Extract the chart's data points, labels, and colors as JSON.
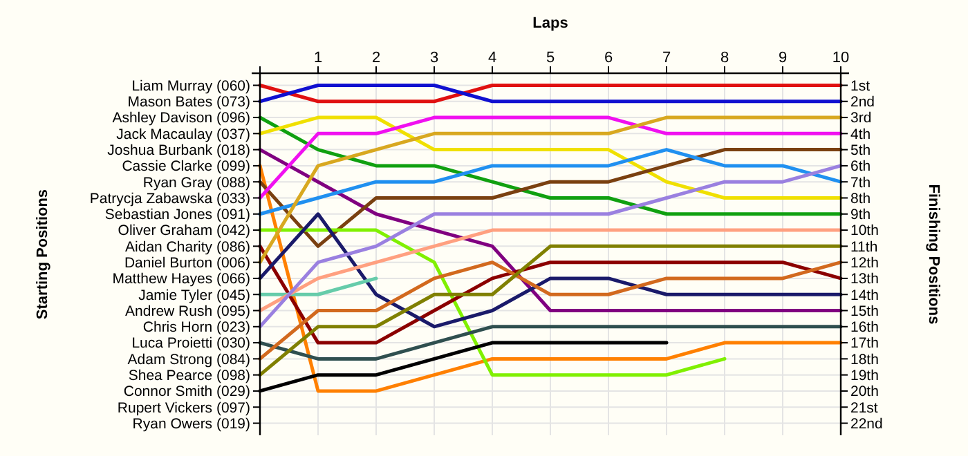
{
  "chart_data": {
    "type": "line",
    "xlabel": "Laps",
    "ylabel": "Finishing Positions",
    "x": [
      0,
      1,
      2,
      3,
      4,
      5,
      6,
      7,
      8,
      9,
      10
    ],
    "xlim": [
      0,
      10
    ],
    "xticks": [
      {
        "value": 0,
        "label": null
      },
      1,
      2,
      3,
      4,
      5,
      6,
      7,
      8,
      9,
      10
    ],
    "ylim": [
      22.75,
      0.25
    ],
    "yticks": [
      {
        "value": 1,
        "label": "1st"
      },
      {
        "value": 2,
        "label": "2nd"
      },
      {
        "value": 3,
        "label": "3rd"
      },
      {
        "value": 4,
        "label": "4th"
      },
      {
        "value": 5,
        "label": "5th"
      },
      {
        "value": 6,
        "label": "6th"
      },
      {
        "value": 7,
        "label": "7th"
      },
      {
        "value": 8,
        "label": "8th"
      },
      {
        "value": 9,
        "label": "9th"
      },
      {
        "value": 10,
        "label": "10th"
      },
      {
        "value": 11,
        "label": "11th"
      },
      {
        "value": 12,
        "label": "12th"
      },
      {
        "value": 13,
        "label": "13th"
      },
      {
        "value": 14,
        "label": "14th"
      },
      {
        "value": 15,
        "label": "15th"
      },
      {
        "value": 16,
        "label": "16th"
      },
      {
        "value": 17,
        "label": "17th"
      },
      {
        "value": 18,
        "label": "18th"
      },
      {
        "value": 19,
        "label": "19th"
      },
      {
        "value": 20,
        "label": "20th"
      },
      {
        "value": 21,
        "label": "21st"
      },
      {
        "value": 22,
        "label": "22nd"
      }
    ],
    "annotations": [
      "Starting Positions",
      "Liam Murray (060)",
      "Mason Bates (073)",
      "Ashley Davison (096)",
      "Jack Macaulay (037)",
      "Joshua Burbank (018)",
      "Cassie Clarke (099)",
      "Ryan Gray (088)",
      "Patrycja Zabawska (033)",
      "Sebastian Jones (091)",
      "Oliver Graham (042)",
      "Aidan Charity (086)",
      "Daniel Burton (006)",
      "Matthew Hayes (066)",
      "Jamie Tyler (045)",
      "Andrew Rush (095)",
      "Chris Horn (023)",
      "Luca Proietti (030)",
      "Adam Strong (084)",
      "Shea Pearce (098)",
      "Connor Smith (029)",
      "Rupert Vickers (097)",
      "Ryan Owers (019)"
    ],
    "grid": true,
    "marker": "none",
    "line_style": "solid",
    "series": [
      {
        "color": "#e01010",
        "values": [
          1,
          2,
          2,
          2,
          1,
          1,
          1,
          1,
          1,
          1,
          1
        ]
      },
      {
        "color": "#1010d0",
        "values": [
          2,
          1,
          1,
          1,
          2,
          2,
          2,
          2,
          2,
          2,
          2
        ]
      },
      {
        "color": "#10a010",
        "values": [
          3,
          5,
          6,
          6,
          7,
          8,
          8,
          9,
          9,
          9,
          9
        ]
      },
      {
        "color": "#f0e000",
        "values": [
          4,
          3,
          3,
          5,
          5,
          5,
          5,
          7,
          8,
          8,
          8
        ]
      },
      {
        "color": "#800080",
        "values": [
          5,
          7,
          9,
          10,
          11,
          15,
          15,
          15,
          15,
          15,
          15
        ]
      },
      {
        "color": "#ff8000",
        "values": [
          6,
          20,
          20,
          19,
          18,
          18,
          18,
          18,
          17,
          17,
          17
        ]
      },
      {
        "color": "#7a4010",
        "values": [
          7,
          11,
          8,
          8,
          8,
          7,
          7,
          6,
          5,
          5,
          5
        ]
      },
      {
        "color": "#f010f0",
        "values": [
          8,
          4,
          4,
          3,
          3,
          3,
          3,
          4,
          4,
          4,
          4
        ]
      },
      {
        "color": "#2090f0",
        "values": [
          9,
          8,
          7,
          7,
          6,
          6,
          6,
          5,
          6,
          6,
          7
        ]
      },
      {
        "color": "#80f000",
        "values": [
          10,
          10,
          10,
          12,
          19,
          19,
          19,
          19,
          18,
          null,
          null
        ]
      },
      {
        "color": "#8b0000",
        "values": [
          11,
          17,
          17,
          15,
          13,
          12,
          12,
          12,
          12,
          12,
          13
        ]
      },
      {
        "color": "#d8a820",
        "values": [
          12,
          6,
          5,
          4,
          4,
          4,
          4,
          3,
          3,
          3,
          3
        ]
      },
      {
        "color": "#1a1a6a",
        "values": [
          13,
          9,
          14,
          16,
          15,
          13,
          13,
          14,
          14,
          14,
          14
        ]
      },
      {
        "color": "#66ccaa",
        "values": [
          14,
          14,
          13,
          null,
          null,
          null,
          null,
          null,
          null,
          null,
          null
        ]
      },
      {
        "color": "#ffa080",
        "values": [
          15,
          13,
          12,
          11,
          10,
          10,
          10,
          10,
          10,
          10,
          10
        ]
      },
      {
        "color": "#9a80e0",
        "values": [
          16,
          12,
          11,
          9,
          9,
          9,
          9,
          8,
          7,
          7,
          6
        ]
      },
      {
        "color": "#2f4f4f",
        "values": [
          17,
          18,
          18,
          17,
          16,
          16,
          16,
          16,
          16,
          16,
          16
        ]
      },
      {
        "color": "#d2691e",
        "values": [
          18,
          15,
          15,
          13,
          12,
          14,
          14,
          13,
          13,
          13,
          12
        ]
      },
      {
        "color": "#808000",
        "values": [
          19,
          16,
          16,
          14,
          14,
          11,
          11,
          11,
          11,
          11,
          11
        ]
      },
      {
        "color": "#000000",
        "values": [
          20,
          19,
          19,
          18,
          17,
          17,
          17,
          17,
          null,
          null,
          null
        ]
      }
    ]
  }
}
